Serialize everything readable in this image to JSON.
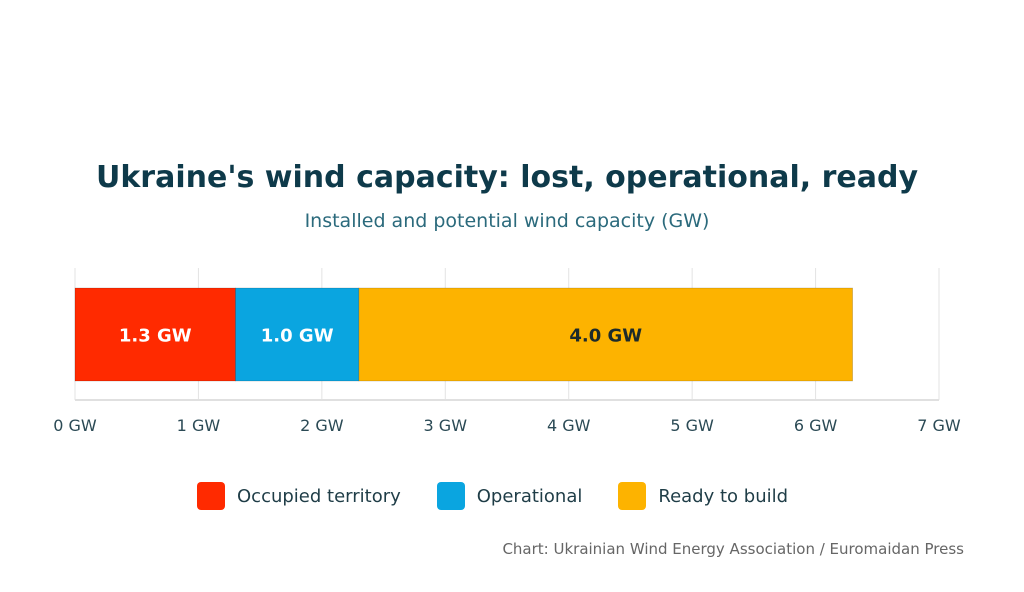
{
  "chart_data": {
    "type": "bar",
    "orientation": "horizontal-stacked",
    "title": "Ukraine's wind capacity: lost, operational, ready",
    "subtitle": "Installed and potential wind capacity (GW)",
    "series": [
      {
        "name": "Occupied territory",
        "value": 1.3,
        "label": "1.3 GW",
        "color": "#ff2a00",
        "label_color": "#ffffff"
      },
      {
        "name": "Operational",
        "value": 1.0,
        "label": "1.0 GW",
        "color": "#0aa5e0",
        "label_color": "#ffffff"
      },
      {
        "name": "Ready to build",
        "value": 4.0,
        "label": "4.0 GW",
        "color": "#fdb300",
        "label_color": "#1d2b2b"
      }
    ],
    "xlim": [
      0,
      7
    ],
    "ticks": [
      "0 GW",
      "1 GW",
      "2 GW",
      "3 GW",
      "4 GW",
      "5 GW",
      "6 GW",
      "7 GW"
    ],
    "grid": true,
    "legend_position": "bottom"
  },
  "source": "Chart: Ukrainian Wind Energy Association / Euromaidan Press"
}
